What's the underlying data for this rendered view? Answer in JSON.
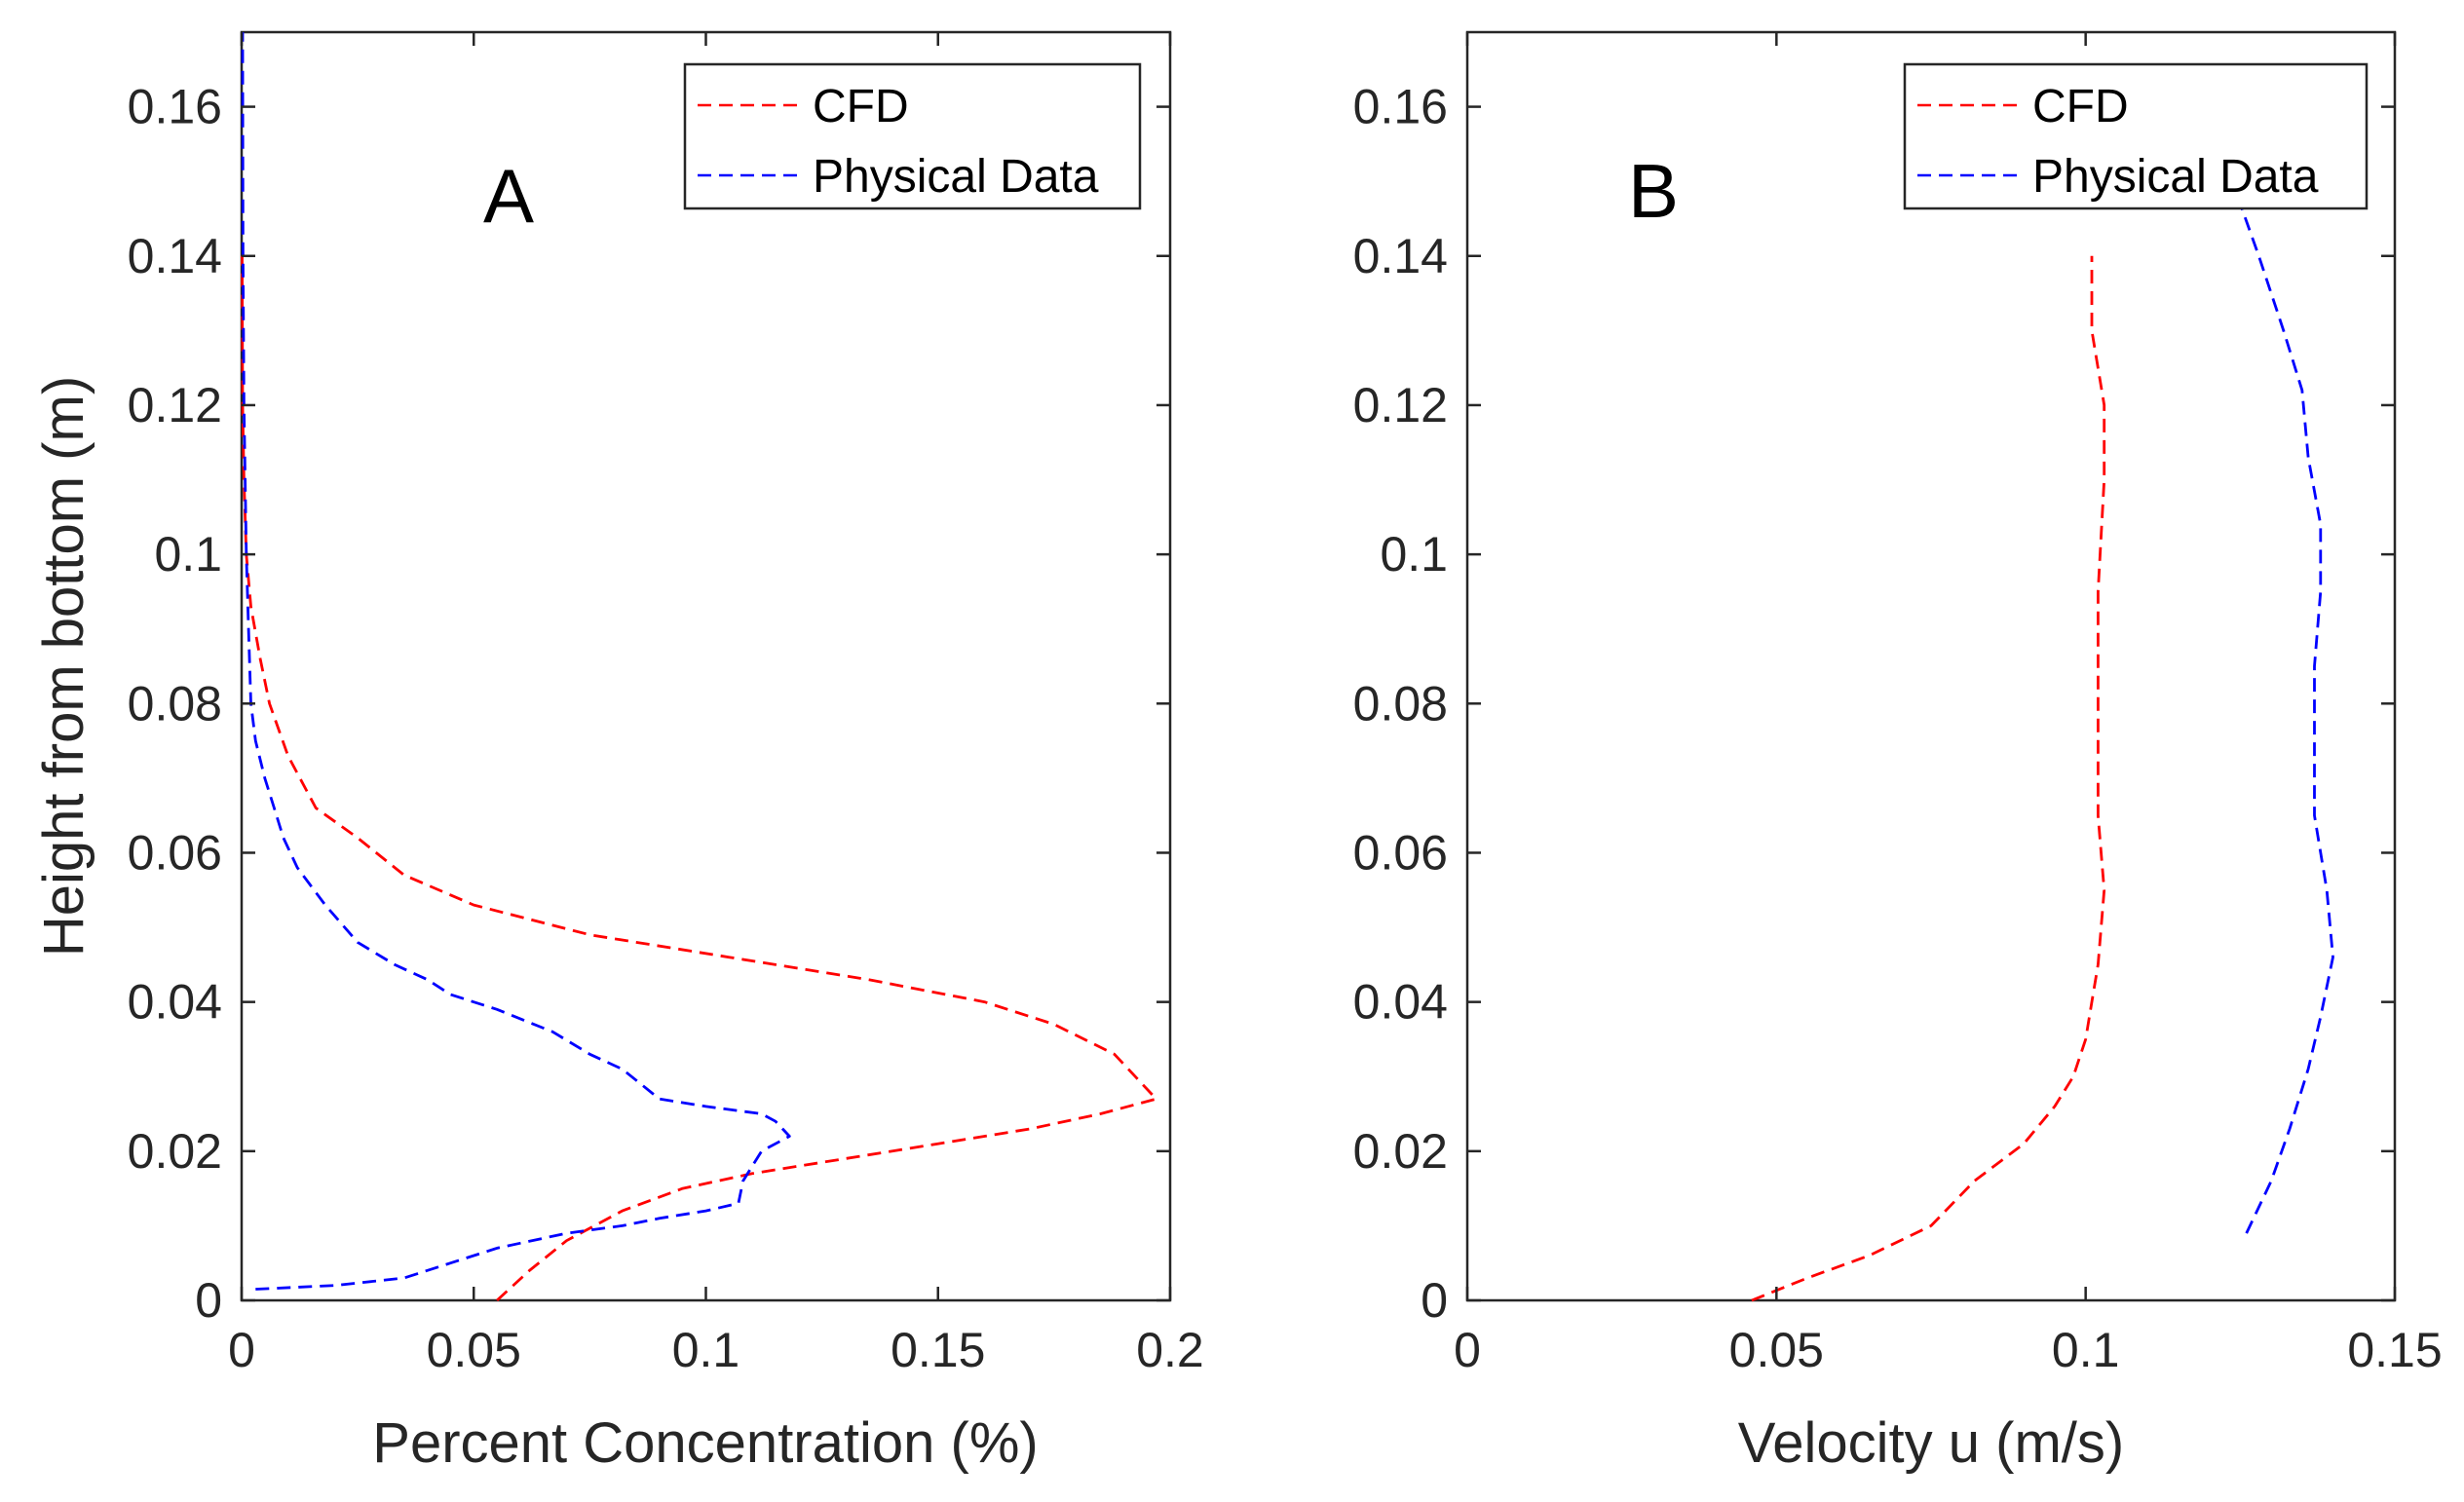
{
  "chart_data": [
    {
      "type": "line",
      "panel_label": "A",
      "title": "",
      "xlabel": "Percent Concentration (%)",
      "ylabel": "Height from bottom (m)",
      "xlim": [
        0,
        0.2
      ],
      "ylim": [
        0,
        0.17
      ],
      "xticks": [
        "0",
        "0.05",
        "0.1",
        "0.15",
        "0.2"
      ],
      "yticks": [
        "0",
        "0.02",
        "0.04",
        "0.06",
        "0.08",
        "0.1",
        "0.12",
        "0.14",
        "0.16"
      ],
      "xtick_values": [
        0,
        0.05,
        0.1,
        0.15,
        0.2
      ],
      "ytick_values": [
        0,
        0.02,
        0.04,
        0.06,
        0.08,
        0.1,
        0.12,
        0.14,
        0.16
      ],
      "grid": false,
      "legend_position": "top-right",
      "series": [
        {
          "name": "CFD",
          "color": "#ff0000",
          "style": "dashed",
          "points": [
            [
              0.055,
              0
            ],
            [
              0.062,
              0.004
            ],
            [
              0.07,
              0.008
            ],
            [
              0.082,
              0.012
            ],
            [
              0.095,
              0.015
            ],
            [
              0.11,
              0.017
            ],
            [
              0.13,
              0.019
            ],
            [
              0.15,
              0.021
            ],
            [
              0.17,
              0.023
            ],
            [
              0.185,
              0.025
            ],
            [
              0.197,
              0.027
            ],
            [
              0.194,
              0.029
            ],
            [
              0.188,
              0.033
            ],
            [
              0.175,
              0.037
            ],
            [
              0.16,
              0.04
            ],
            [
              0.135,
              0.043
            ],
            [
              0.105,
              0.046
            ],
            [
              0.075,
              0.049
            ],
            [
              0.05,
              0.053
            ],
            [
              0.035,
              0.057
            ],
            [
              0.025,
              0.062
            ],
            [
              0.016,
              0.066
            ],
            [
              0.01,
              0.073
            ],
            [
              0.006,
              0.08
            ],
            [
              0.004,
              0.086
            ],
            [
              0.002,
              0.093
            ],
            [
              0.001,
              0.1
            ],
            [
              0.0005,
              0.11
            ],
            [
              0.0002,
              0.12
            ],
            [
              0.0001,
              0.14
            ]
          ]
        },
        {
          "name": "Physical Data",
          "color": "#0000ff",
          "style": "dashed",
          "points": [
            [
              0.003,
              0.0015
            ],
            [
              0.02,
              0.002
            ],
            [
              0.035,
              0.003
            ],
            [
              0.045,
              0.005
            ],
            [
              0.055,
              0.007
            ],
            [
              0.07,
              0.009
            ],
            [
              0.082,
              0.01
            ],
            [
              0.09,
              0.011
            ],
            [
              0.1,
              0.012
            ],
            [
              0.107,
              0.013
            ],
            [
              0.108,
              0.016
            ],
            [
              0.11,
              0.018
            ],
            [
              0.112,
              0.02
            ],
            [
              0.118,
              0.022
            ],
            [
              0.115,
              0.024
            ],
            [
              0.112,
              0.025
            ],
            [
              0.1,
              0.026
            ],
            [
              0.09,
              0.027
            ],
            [
              0.082,
              0.031
            ],
            [
              0.075,
              0.033
            ],
            [
              0.067,
              0.036
            ],
            [
              0.055,
              0.039
            ],
            [
              0.045,
              0.041
            ],
            [
              0.04,
              0.043
            ],
            [
              0.033,
              0.045
            ],
            [
              0.025,
              0.048
            ],
            [
              0.018,
              0.053
            ],
            [
              0.012,
              0.058
            ],
            [
              0.009,
              0.062
            ],
            [
              0.007,
              0.066
            ],
            [
              0.005,
              0.07
            ],
            [
              0.003,
              0.075
            ],
            [
              0.002,
              0.08
            ],
            [
              0.0015,
              0.09
            ],
            [
              0.001,
              0.1
            ],
            [
              0.0005,
              0.12
            ],
            [
              0.0003,
              0.14
            ],
            [
              0.0002,
              0.17
            ]
          ]
        }
      ]
    },
    {
      "type": "line",
      "panel_label": "B",
      "title": "",
      "xlabel": "Velocity u (m/s)",
      "ylabel": "",
      "xlim": [
        0,
        0.15
      ],
      "ylim": [
        0,
        0.17
      ],
      "xticks": [
        "0",
        "0.05",
        "0.1",
        "0.15"
      ],
      "yticks": [
        "0",
        "0.02",
        "0.04",
        "0.06",
        "0.08",
        "0.1",
        "0.12",
        "0.14",
        "0.16"
      ],
      "xtick_values": [
        0,
        0.05,
        0.1,
        0.15
      ],
      "ytick_values": [
        0,
        0.02,
        0.04,
        0.06,
        0.08,
        0.1,
        0.12,
        0.14,
        0.16
      ],
      "grid": false,
      "legend_position": "top-right",
      "series": [
        {
          "name": "CFD",
          "color": "#ff0000",
          "style": "dashed",
          "points": [
            [
              0.046,
              0
            ],
            [
              0.055,
              0.003
            ],
            [
              0.065,
              0.006
            ],
            [
              0.075,
              0.01
            ],
            [
              0.082,
              0.016
            ],
            [
              0.09,
              0.021
            ],
            [
              0.095,
              0.026
            ],
            [
              0.098,
              0.03
            ],
            [
              0.1,
              0.035
            ],
            [
              0.101,
              0.04
            ],
            [
              0.102,
              0.045
            ],
            [
              0.103,
              0.055
            ],
            [
              0.102,
              0.065
            ],
            [
              0.102,
              0.08
            ],
            [
              0.102,
              0.095
            ],
            [
              0.103,
              0.11
            ],
            [
              0.103,
              0.12
            ],
            [
              0.101,
              0.13
            ],
            [
              0.101,
              0.14
            ]
          ]
        },
        {
          "name": "Physical Data",
          "color": "#0000ff",
          "style": "dashed",
          "points": [
            [
              0.126,
              0.009
            ],
            [
              0.13,
              0.016
            ],
            [
              0.133,
              0.023
            ],
            [
              0.136,
              0.031
            ],
            [
              0.138,
              0.038
            ],
            [
              0.14,
              0.046
            ],
            [
              0.139,
              0.055
            ],
            [
              0.137,
              0.065
            ],
            [
              0.137,
              0.075
            ],
            [
              0.137,
              0.085
            ],
            [
              0.138,
              0.095
            ],
            [
              0.138,
              0.104
            ],
            [
              0.136,
              0.113
            ],
            [
              0.135,
              0.122
            ],
            [
              0.132,
              0.13
            ],
            [
              0.128,
              0.14
            ],
            [
              0.125,
              0.147
            ],
            [
              0.122,
              0.154
            ]
          ]
        }
      ]
    }
  ]
}
